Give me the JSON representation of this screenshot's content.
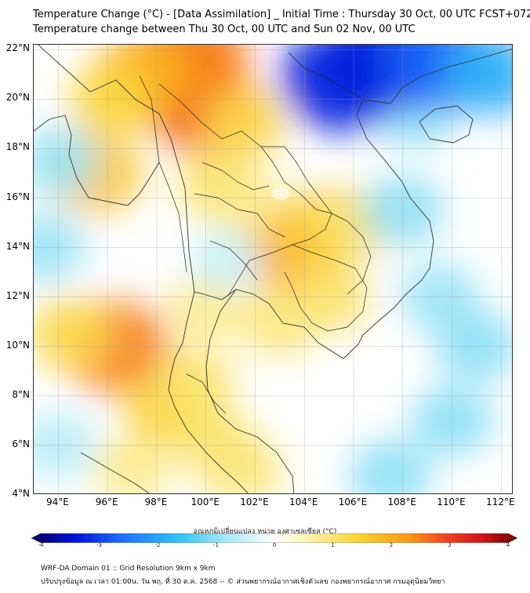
{
  "title": {
    "line1": "Temperature Change (°C) - [Data Assimilation] _ Initial Time : Thursday 30 Oct, 00 UTC FCST+072",
    "line2": "Temperature change between Thu 30 Oct, 00 UTC and Sun 02 Nov, 00 UTC"
  },
  "axes": {
    "lat_labels": [
      "22°N",
      "20°N",
      "18°N",
      "16°N",
      "14°N",
      "12°N",
      "10°N",
      "8°N",
      "6°N",
      "4°N"
    ],
    "lon_labels": [
      "94°E",
      "96°E",
      "98°E",
      "100°E",
      "102°E",
      "104°E",
      "106°E",
      "108°E",
      "110°E",
      "112°E"
    ]
  },
  "map_extent": {
    "lon_min": 93,
    "lon_max": 112.5,
    "lat_min": 4,
    "lat_max": 22.2
  },
  "field_blobs": [
    {
      "lon": 98.7,
      "lat": 20.8,
      "value": 2.8
    },
    {
      "lon": 100.0,
      "lat": 19.7,
      "value": 2.6
    },
    {
      "lon": 99.5,
      "lat": 21.8,
      "value": 2.4
    },
    {
      "lon": 97.5,
      "lat": 21.0,
      "value": 1.9
    },
    {
      "lon": 96.2,
      "lat": 20.0,
      "value": 1.3
    },
    {
      "lon": 95.5,
      "lat": 17.0,
      "value": 1.6
    },
    {
      "lon": 101.5,
      "lat": 19.0,
      "value": 1.2
    },
    {
      "lon": 100.5,
      "lat": 16.5,
      "value": 1.0
    },
    {
      "lon": 102.0,
      "lat": 15.5,
      "value": 0.8
    },
    {
      "lon": 103.8,
      "lat": 13.7,
      "value": 2.0
    },
    {
      "lon": 104.8,
      "lat": 14.8,
      "value": 1.5
    },
    {
      "lon": 106.0,
      "lat": 15.0,
      "value": 1.0
    },
    {
      "lon": 105.0,
      "lat": 12.0,
      "value": 1.0
    },
    {
      "lon": 103.0,
      "lat": 11.0,
      "value": 0.9
    },
    {
      "lon": 100.0,
      "lat": 11.5,
      "value": 0.8
    },
    {
      "lon": 96.3,
      "lat": 10.0,
      "value": 2.4
    },
    {
      "lon": 94.5,
      "lat": 10.5,
      "value": 1.2
    },
    {
      "lon": 98.5,
      "lat": 7.5,
      "value": 1.4
    },
    {
      "lon": 99.5,
      "lat": 8.5,
      "value": 1.0
    },
    {
      "lon": 100.5,
      "lat": 6.0,
      "value": 1.0
    },
    {
      "lon": 101.5,
      "lat": 5.0,
      "value": 0.9
    },
    {
      "lon": 97.0,
      "lat": 5.0,
      "value": 0.8
    },
    {
      "lon": 108.5,
      "lat": 19.5,
      "value": -1.0
    },
    {
      "lon": 105.5,
      "lat": 20.8,
      "value": -3.2
    },
    {
      "lon": 107.2,
      "lat": 21.6,
      "value": -3.2
    },
    {
      "lon": 109.5,
      "lat": 21.5,
      "value": -2.6
    },
    {
      "lon": 111.5,
      "lat": 21.0,
      "value": -1.8
    },
    {
      "lon": 108.0,
      "lat": 15.5,
      "value": -1.0
    },
    {
      "lon": 109.5,
      "lat": 12.0,
      "value": -0.9
    },
    {
      "lon": 111.0,
      "lat": 10.0,
      "value": -1.0
    },
    {
      "lon": 110.0,
      "lat": 7.0,
      "value": -1.0
    },
    {
      "lon": 107.5,
      "lat": 4.8,
      "value": -1.0
    },
    {
      "lon": 93.5,
      "lat": 14.0,
      "value": -0.9
    },
    {
      "lon": 94.0,
      "lat": 17.5,
      "value": -0.9
    },
    {
      "lon": 94.0,
      "lat": 6.0,
      "value": -0.7
    },
    {
      "lon": 100.8,
      "lat": 13.5,
      "value": -0.5
    }
  ],
  "colorbar": {
    "title": "อุณหภูมิเปลี่ยนแปลง หน่วย องศาเซลเซียส (°C)",
    "min": -4,
    "max": 4,
    "ticks": [
      "-4",
      "-3",
      "-2",
      "-1",
      "0",
      "1",
      "2",
      "3",
      "4"
    ],
    "stops": [
      {
        "v": -4,
        "color": "#08005e"
      },
      {
        "v": -3.3,
        "color": "#0010d8"
      },
      {
        "v": -2.5,
        "color": "#1f6fff"
      },
      {
        "v": -1.6,
        "color": "#2ec3f5"
      },
      {
        "v": -0.8,
        "color": "#a7e8f7"
      },
      {
        "v": 0,
        "color": "#ffffff"
      },
      {
        "v": 0.6,
        "color": "#fdf3a6"
      },
      {
        "v": 1.4,
        "color": "#fbd22e"
      },
      {
        "v": 2.2,
        "color": "#fb9a14"
      },
      {
        "v": 2.8,
        "color": "#f0451e"
      },
      {
        "v": 3.4,
        "color": "#d4141a"
      },
      {
        "v": 4,
        "color": "#6e0000"
      }
    ]
  },
  "footer": {
    "line1": "WRF-DA Domain 01 :: Grid Resolution 9km x 9km",
    "line2": "ปรับปรุงข้อมูล ณ เวลา 01:00น. วัน พฤ. ที่ 30 ต.ค. 2568 -- © ส่วนพยากรณ์อากาศเชิงตัวเลข กองพยากรณ์อากาศ กรมอุตุนิยมวิทยา"
  }
}
